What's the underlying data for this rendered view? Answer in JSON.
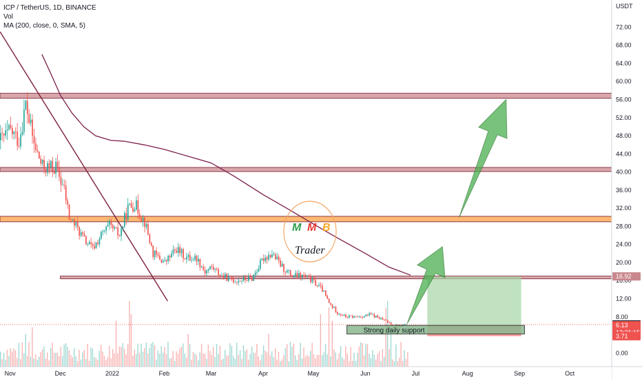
{
  "header": {
    "symbol_line": "ICP / TetherUS, 1D, BINANCE",
    "vol_label": "Vol",
    "ma_label": "MA (200, close, 0, SMA, 5)"
  },
  "logo": {
    "letters": [
      "M",
      "M",
      "B"
    ],
    "text": "Trader"
  },
  "annotation": {
    "support_label": "Strong daily support"
  },
  "colors": {
    "up": "#26a69a",
    "down": "#ef5350",
    "ma": "#7b1e4a",
    "zone_red": "#d8a7ac",
    "zone_orange": "#ffb870",
    "arrow": "#4caf50",
    "target_box": "#a5d6a7",
    "stop_box": "#ef5350"
  },
  "chart_data": {
    "type": "candlestick",
    "title": "ICP / TetherUS, 1D, BINANCE",
    "yaxis": {
      "unit": "USDT",
      "range": [
        -3,
        78
      ],
      "ticks": [
        "72.00",
        "68.00",
        "64.00",
        "60.00",
        "56.00",
        "52.00",
        "48.00",
        "44.00",
        "40.00",
        "36.00",
        "32.00",
        "28.00",
        "24.00",
        "20.00",
        "16.00",
        "12.00",
        "8.00",
        "4.00",
        "0.00"
      ]
    },
    "xaxis": {
      "range": [
        "2021-10-26",
        "2022-10-26"
      ],
      "ticks": [
        {
          "label": "Nov",
          "date": "2021-11-01"
        },
        {
          "label": "Dec",
          "date": "2021-12-01"
        },
        {
          "label": "2022",
          "date": "2022-01-01"
        },
        {
          "label": "Feb",
          "date": "2022-02-01"
        },
        {
          "label": "Mar",
          "date": "2022-03-01"
        },
        {
          "label": "Apr",
          "date": "2022-04-01"
        },
        {
          "label": "May",
          "date": "2022-05-01"
        },
        {
          "label": "Jun",
          "date": "2022-06-01"
        },
        {
          "label": "Jul",
          "date": "2022-07-01"
        },
        {
          "label": "Aug",
          "date": "2022-08-01"
        },
        {
          "label": "Sep",
          "date": "2022-09-01"
        },
        {
          "label": "Oct",
          "date": "2022-10-01"
        }
      ]
    },
    "price_path": [
      [
        "2021-10-26",
        47
      ],
      [
        "2021-11-01",
        49
      ],
      [
        "2021-11-06",
        47
      ],
      [
        "2021-11-10",
        55
      ],
      [
        "2021-11-15",
        46
      ],
      [
        "2021-11-20",
        41
      ],
      [
        "2021-11-28",
        41
      ],
      [
        "2021-12-03",
        36
      ],
      [
        "2021-12-06",
        30
      ],
      [
        "2021-12-10",
        28
      ],
      [
        "2021-12-15",
        25
      ],
      [
        "2021-12-20",
        23
      ],
      [
        "2021-12-25",
        26
      ],
      [
        "2021-12-30",
        28
      ],
      [
        "2022-01-05",
        26
      ],
      [
        "2022-01-10",
        32
      ],
      [
        "2022-01-14",
        33
      ],
      [
        "2022-01-20",
        29
      ],
      [
        "2022-01-25",
        22
      ],
      [
        "2022-02-01",
        20
      ],
      [
        "2022-02-08",
        23
      ],
      [
        "2022-02-14",
        21
      ],
      [
        "2022-02-20",
        21
      ],
      [
        "2022-02-25",
        18
      ],
      [
        "2022-03-01",
        19
      ],
      [
        "2022-03-07",
        17
      ],
      [
        "2022-03-15",
        16
      ],
      [
        "2022-03-25",
        16.5
      ],
      [
        "2022-04-01",
        21
      ],
      [
        "2022-04-06",
        22
      ],
      [
        "2022-04-12",
        19
      ],
      [
        "2022-04-18",
        17
      ],
      [
        "2022-04-25",
        17
      ],
      [
        "2022-04-30",
        16
      ],
      [
        "2022-05-06",
        14
      ],
      [
        "2022-05-10",
        11
      ],
      [
        "2022-05-15",
        9
      ],
      [
        "2022-05-20",
        8
      ],
      [
        "2022-05-28",
        8
      ],
      [
        "2022-06-04",
        8.5
      ],
      [
        "2022-06-10",
        7.5
      ],
      [
        "2022-06-16",
        6.5
      ],
      [
        "2022-06-20",
        6
      ],
      [
        "2022-06-25",
        6.3
      ]
    ],
    "ma_200": [
      [
        "2021-11-20",
        66
      ],
      [
        "2021-11-25",
        62
      ],
      [
        "2021-12-01",
        57
      ],
      [
        "2021-12-08",
        53
      ],
      [
        "2021-12-15",
        50
      ],
      [
        "2021-12-22",
        48
      ],
      [
        "2021-12-31",
        47
      ],
      [
        "2022-01-08",
        46.8
      ],
      [
        "2022-01-20",
        46
      ],
      [
        "2022-02-01",
        45
      ],
      [
        "2022-02-15",
        43.5
      ],
      [
        "2022-03-01",
        42
      ],
      [
        "2022-03-15",
        39
      ],
      [
        "2022-04-01",
        35
      ],
      [
        "2022-04-15",
        32
      ],
      [
        "2022-05-01",
        28.5
      ],
      [
        "2022-05-15",
        25.5
      ],
      [
        "2022-06-01",
        22
      ],
      [
        "2022-06-15",
        19
      ],
      [
        "2022-06-28",
        17.2
      ]
    ],
    "last_candle": {
      "open": 6.13,
      "close": 6.3
    },
    "price_labels": [
      {
        "value": 16.92,
        "text": "16.92",
        "bg": "#c9888e"
      },
      {
        "value": 6.3,
        "text": "6.30",
        "bg": "#131722"
      },
      {
        "value": 6.13,
        "text": "6.13",
        "bg": "#ef5350"
      },
      {
        "value": 4.5,
        "text": "13:21:15",
        "bg": "#ef5350"
      },
      {
        "value": 3.71,
        "text": "3.71",
        "bg": "#ef5350"
      }
    ],
    "horizontal_zones": [
      {
        "name": "resistance-56",
        "low": 56.3,
        "high": 57.4,
        "from": "2021-10-26",
        "color": "#d8a7ac"
      },
      {
        "name": "resistance-40",
        "low": 40.1,
        "high": 41.0,
        "from": "2021-10-26",
        "color": "#d8a7ac"
      },
      {
        "name": "resistance-30",
        "low": 29.0,
        "high": 30.2,
        "from": "2021-10-26",
        "color": "#ffb870"
      },
      {
        "name": "resistance-16",
        "low": 16.4,
        "high": 17.0,
        "from": "2021-12-01",
        "color": "#d8a7ac"
      }
    ],
    "support_zone": {
      "low": 4.2,
      "high": 6.1,
      "from": "2022-05-21",
      "to": "2022-09-04"
    },
    "trendline": [
      [
        "2021-10-26",
        71
      ],
      [
        "2022-02-03",
        11.5
      ]
    ],
    "position": {
      "entry": 6.13,
      "target": 16.92,
      "stop": 3.71,
      "from": "2022-07-08",
      "to": "2022-09-02"
    },
    "arrows": [
      {
        "from": [
          "2022-06-26",
          6.5
        ],
        "to": [
          "2022-07-17",
          23.5
        ]
      },
      {
        "from": [
          "2022-07-27",
          30.0
        ],
        "to": [
          "2022-08-24",
          56.0
        ]
      }
    ],
    "volume_spikes": [
      [
        "2021-11-10",
        0.5
      ],
      [
        "2021-11-14",
        0.6
      ],
      [
        "2022-01-11",
        1.0
      ],
      [
        "2022-01-12",
        0.8
      ],
      [
        "2022-01-03",
        0.7
      ],
      [
        "2022-02-15",
        0.5
      ],
      [
        "2022-04-04",
        0.5
      ],
      [
        "2022-05-05",
        0.8
      ],
      [
        "2022-05-10",
        0.9
      ],
      [
        "2022-05-12",
        0.7
      ],
      [
        "2022-06-13",
        0.9
      ],
      [
        "2022-06-14",
        1.0
      ],
      [
        "2022-06-16",
        0.7
      ]
    ]
  }
}
